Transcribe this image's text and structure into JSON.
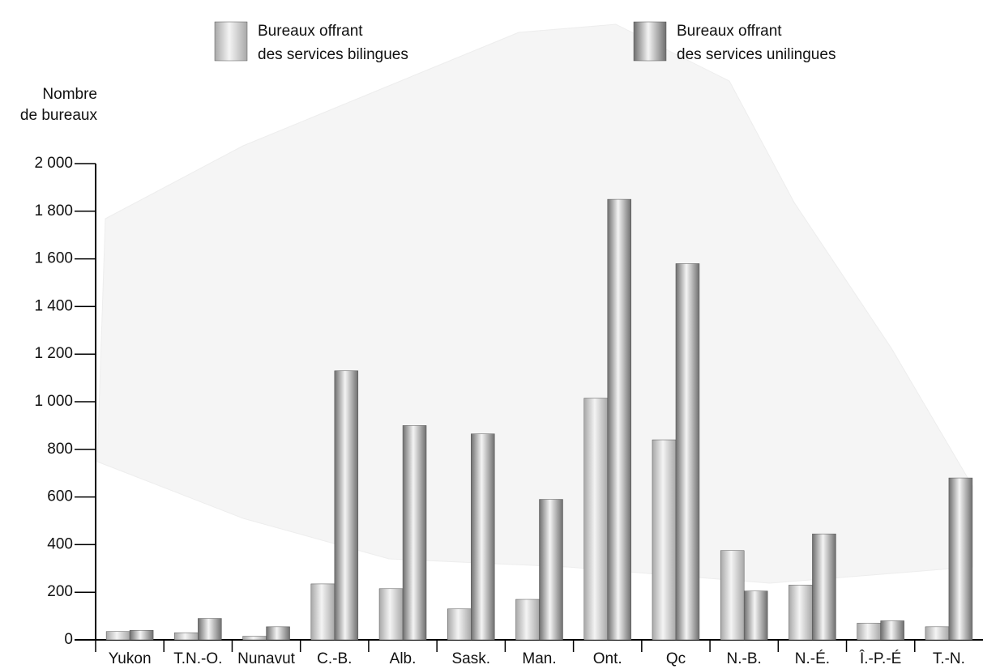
{
  "chart_data": {
    "type": "bar",
    "y_label": [
      "Nombre",
      "de bureaux"
    ],
    "categories": [
      "Yukon",
      "T.N.-O.",
      "Nunavut",
      "C.-B.",
      "Alb.",
      "Sask.",
      "Man.",
      "Ont.",
      "Qc",
      "N.-B.",
      "N.-É.",
      "Î.-P.-É",
      "T.-N."
    ],
    "series": [
      {
        "name": "Bureaux offrant des services bilingues",
        "color": "#a8a8a8",
        "values": [
          35,
          30,
          15,
          235,
          215,
          130,
          170,
          1015,
          840,
          375,
          230,
          70,
          55
        ]
      },
      {
        "name": "Bureaux offrant des services unilingues",
        "color": "#6e6e6e",
        "values": [
          40,
          90,
          55,
          1130,
          900,
          865,
          590,
          1850,
          1580,
          205,
          445,
          80,
          680
        ]
      }
    ],
    "ylim": [
      0,
      2000
    ],
    "yticks": [
      0,
      200,
      400,
      600,
      800,
      {
        "value": 1000,
        "label": "1 000"
      },
      {
        "value": 1200,
        "label": "1 200"
      },
      {
        "value": 1400,
        "label": "1 400"
      },
      {
        "value": 1600,
        "label": "1 600"
      },
      {
        "value": 1800,
        "label": "1 800"
      },
      {
        "value": 2000,
        "label": "2 000"
      }
    ],
    "legend": "top"
  }
}
